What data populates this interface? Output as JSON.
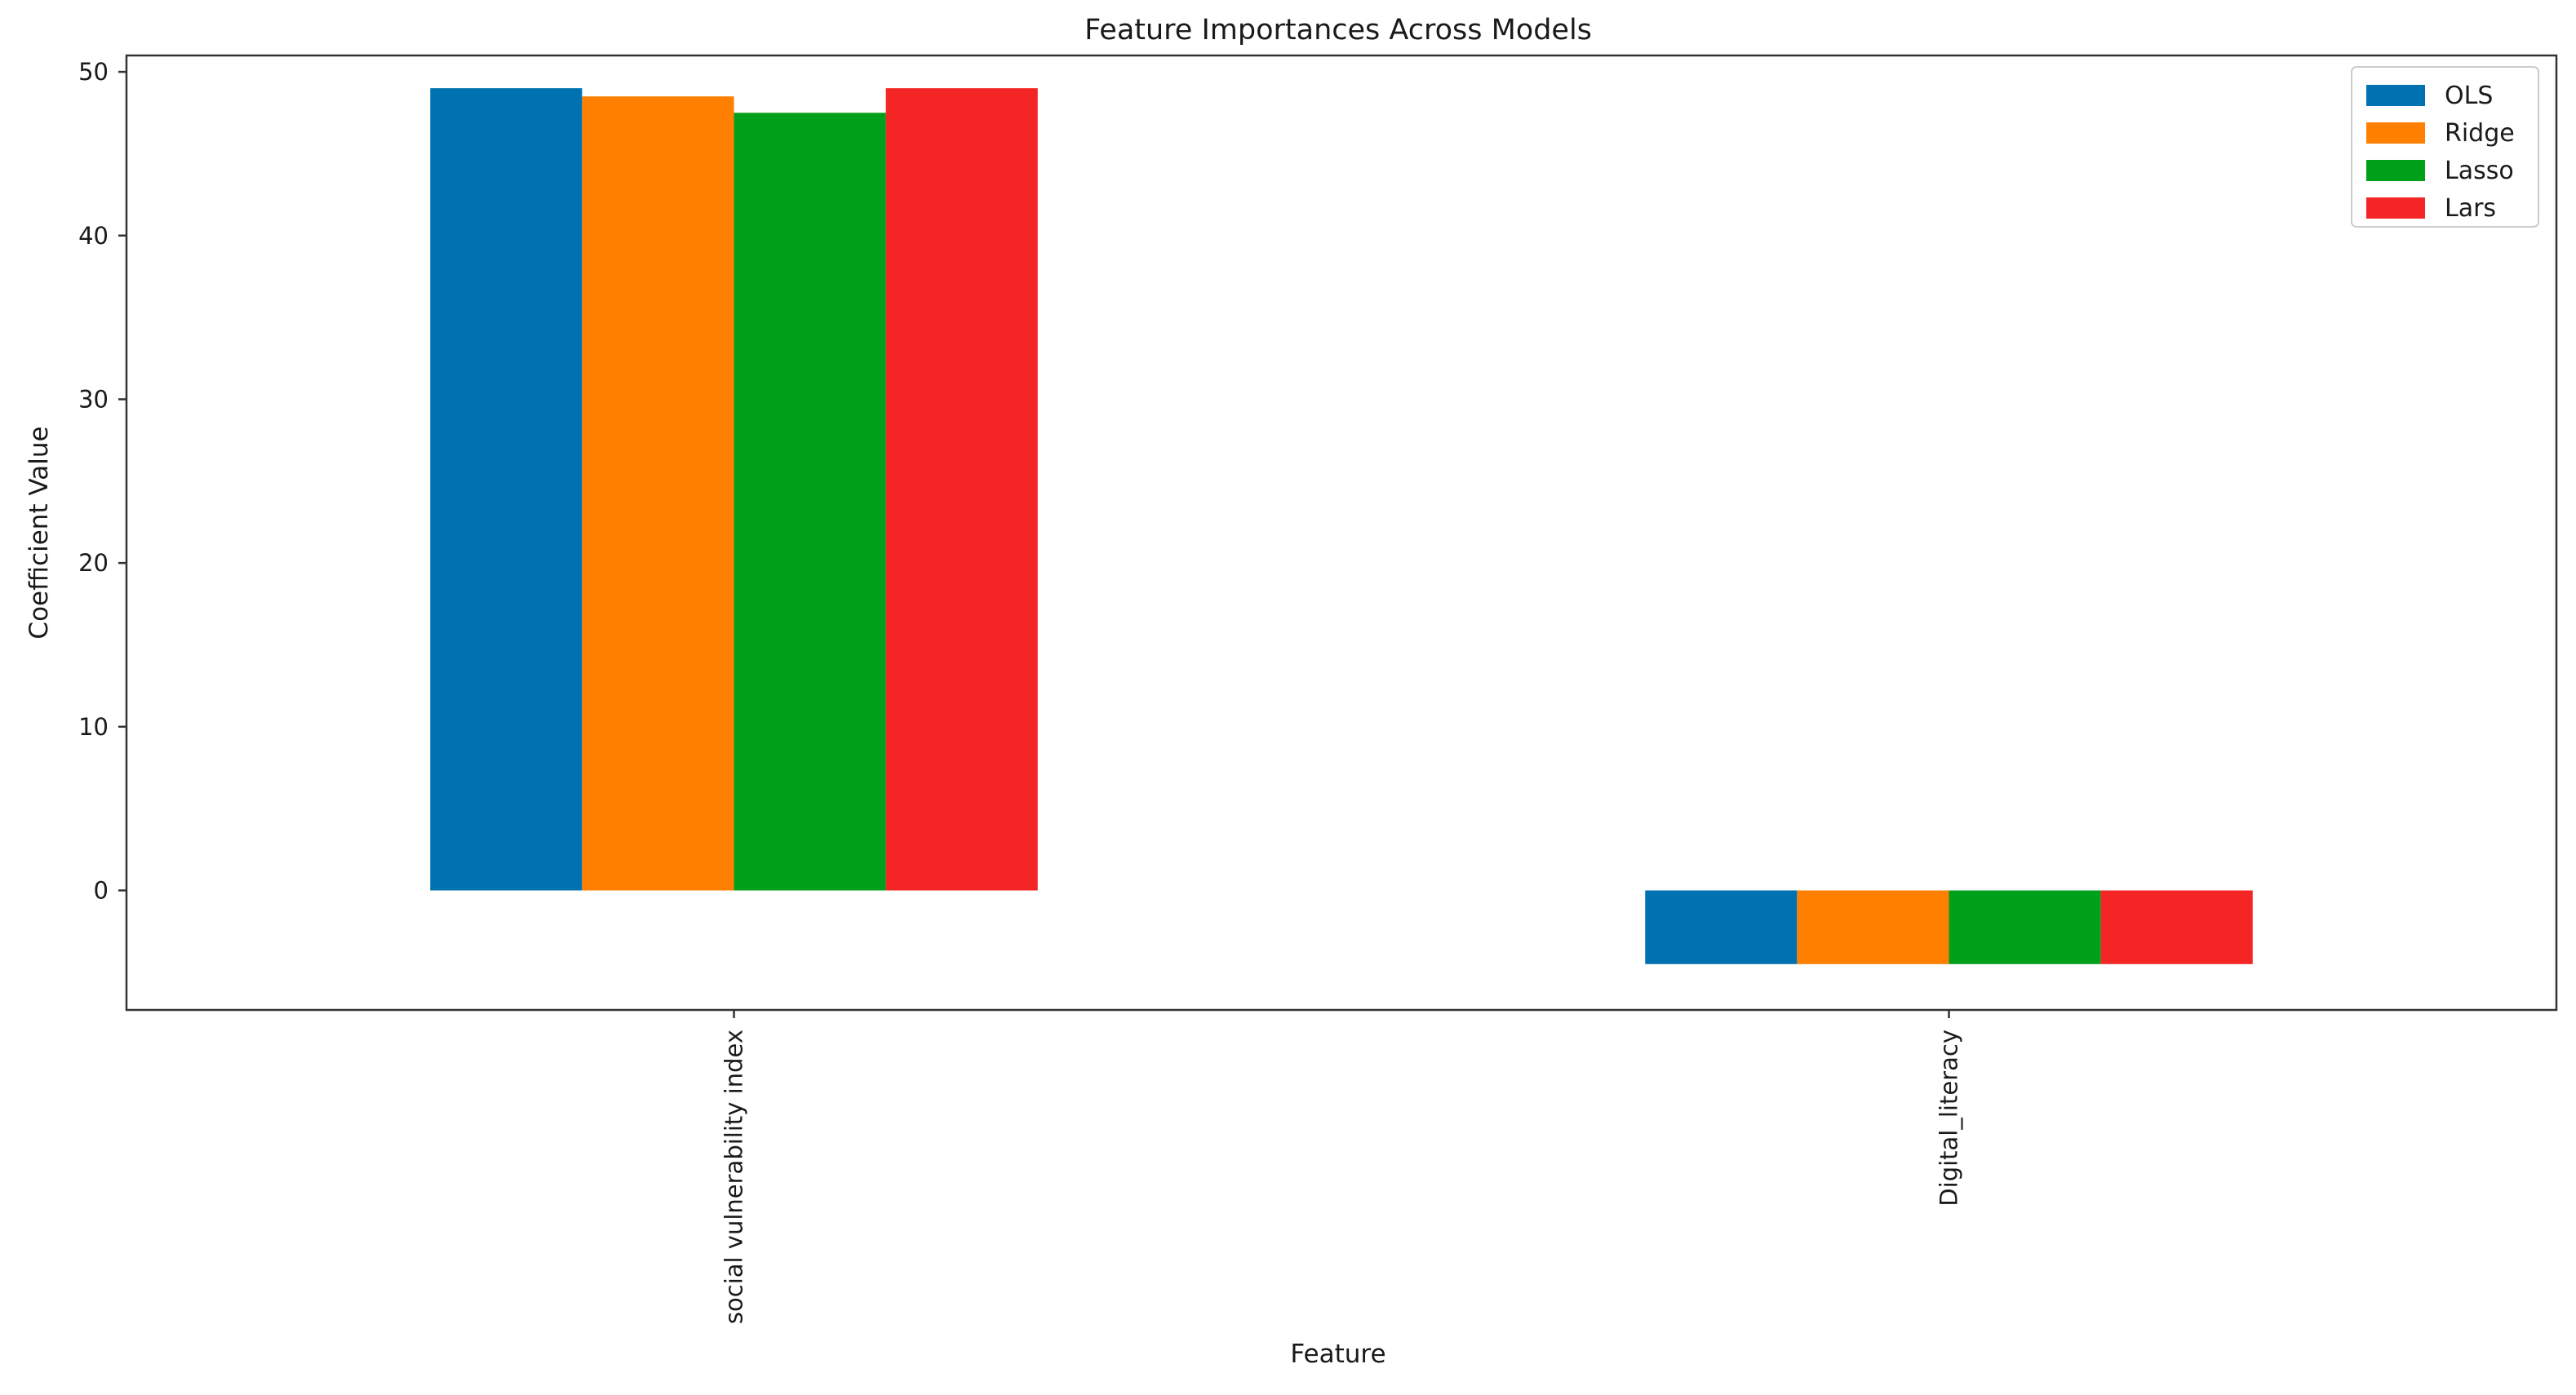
{
  "chart_data": {
    "type": "bar",
    "title": "Feature Importances Across Models",
    "xlabel": "Feature",
    "ylabel": "Coefficient Value",
    "categories": [
      "social vulnerability index",
      "Digital_literacy"
    ],
    "series": [
      {
        "name": "OLS",
        "color": "#0072b2",
        "values": [
          49.0,
          -4.5
        ]
      },
      {
        "name": "Ridge",
        "color": "#ff7f00",
        "values": [
          48.5,
          -4.5
        ]
      },
      {
        "name": "Lasso",
        "color": "#00a01a",
        "values": [
          47.5,
          -4.5
        ]
      },
      {
        "name": "Lars",
        "color": "#f42525",
        "values": [
          49.0,
          -4.5
        ]
      }
    ],
    "ylim": [
      -7.3,
      51.0
    ],
    "yticks": [
      0,
      10,
      20,
      30,
      40,
      50
    ],
    "grid": false,
    "legend_position": "top-right"
  }
}
